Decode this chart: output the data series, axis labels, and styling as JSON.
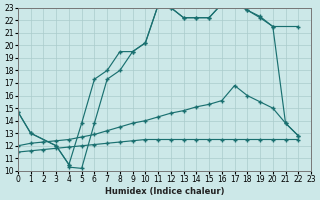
{
  "xlabel": "Humidex (Indice chaleur)",
  "xlim": [
    0,
    23
  ],
  "ylim": [
    10,
    23
  ],
  "yticks": [
    10,
    11,
    12,
    13,
    14,
    15,
    16,
    17,
    18,
    19,
    20,
    21,
    22,
    23
  ],
  "xticks": [
    0,
    1,
    2,
    3,
    4,
    5,
    6,
    7,
    8,
    9,
    10,
    11,
    12,
    13,
    14,
    15,
    16,
    17,
    18,
    19,
    20,
    21,
    22,
    23
  ],
  "bg_color": "#cce8e8",
  "grid_color": "#aacccc",
  "line_color": "#1a7070",
  "lines": [
    {
      "x": [
        0,
        1,
        3,
        4,
        5,
        6,
        7,
        8,
        9,
        10,
        11,
        12,
        13,
        14,
        15,
        16,
        17,
        18,
        19,
        20,
        22
      ],
      "y": [
        14.7,
        13.0,
        12.0,
        10.5,
        13.8,
        17.3,
        18.0,
        19.5,
        19.5,
        20.2,
        23.2,
        23.0,
        22.2,
        22.2,
        22.2,
        23.3,
        23.3,
        22.8,
        22.2,
        21.5,
        21.5
      ]
    },
    {
      "x": [
        0,
        1,
        3,
        4,
        4,
        5,
        6,
        7,
        8,
        9,
        10,
        11,
        12,
        13,
        14,
        15,
        16,
        17,
        18,
        19,
        20,
        21,
        22
      ],
      "y": [
        14.7,
        13.0,
        12.0,
        10.5,
        10.3,
        10.2,
        13.8,
        17.3,
        18.0,
        19.5,
        20.2,
        23.2,
        23.0,
        22.2,
        22.2,
        22.2,
        23.3,
        23.5,
        22.8,
        22.3,
        21.5,
        13.8,
        12.8
      ]
    },
    {
      "x": [
        0,
        1,
        2,
        3,
        4,
        5,
        6,
        7,
        8,
        9,
        10,
        11,
        12,
        13,
        14,
        15,
        16,
        17,
        18,
        19,
        20,
        21,
        22
      ],
      "y": [
        12.0,
        12.2,
        12.3,
        12.4,
        12.5,
        12.7,
        12.9,
        13.2,
        13.5,
        13.8,
        14.0,
        14.3,
        14.6,
        14.8,
        15.1,
        15.3,
        15.6,
        16.8,
        16.0,
        15.5,
        15.0,
        13.8,
        12.8
      ]
    },
    {
      "x": [
        0,
        1,
        2,
        3,
        4,
        5,
        6,
        7,
        8,
        9,
        10,
        11,
        12,
        13,
        14,
        15,
        16,
        17,
        18,
        19,
        20,
        21,
        22
      ],
      "y": [
        11.5,
        11.6,
        11.7,
        11.8,
        11.9,
        12.0,
        12.1,
        12.2,
        12.3,
        12.4,
        12.5,
        12.5,
        12.5,
        12.5,
        12.5,
        12.5,
        12.5,
        12.5,
        12.5,
        12.5,
        12.5,
        12.5,
        12.5
      ]
    }
  ]
}
